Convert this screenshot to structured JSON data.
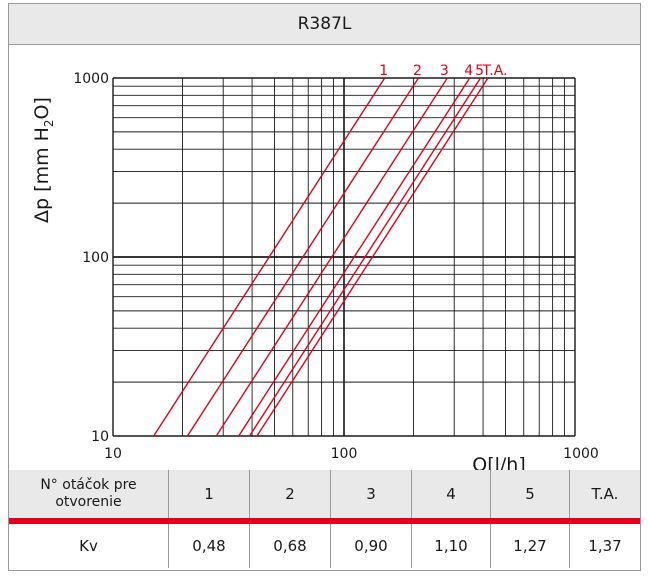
{
  "title": "R387L",
  "chart_data": {
    "type": "line",
    "title": "R387L",
    "xlabel": "Q[l/h]",
    "ylabel": "Δp[mmH2O]",
    "ylabel_parts": {
      "main": "Δp [mm H",
      "sub": "2",
      "end": "O]"
    },
    "x_scale": "log",
    "y_scale": "log",
    "xlim": [
      10,
      1000
    ],
    "ylim": [
      10,
      1000
    ],
    "x_ticks": [
      "10",
      "100",
      "1000"
    ],
    "y_ticks": [
      "10",
      "100",
      "1000"
    ],
    "grid": true,
    "series_color": "#e3001b",
    "series": [
      {
        "name": "1",
        "kv": 0.48,
        "x": [
          15,
          150
        ],
        "y": [
          10,
          1000
        ]
      },
      {
        "name": "2",
        "kv": 0.68,
        "x": [
          21,
          210
        ],
        "y": [
          10,
          1000
        ]
      },
      {
        "name": "3",
        "kv": 0.9,
        "x": [
          28,
          280
        ],
        "y": [
          10,
          1000
        ]
      },
      {
        "name": "4",
        "kv": 1.1,
        "x": [
          35,
          350
        ],
        "y": [
          10,
          1000
        ]
      },
      {
        "name": "5",
        "kv": 1.27,
        "x": [
          39,
          390
        ],
        "y": [
          10,
          1000
        ]
      },
      {
        "name": "T.A.",
        "kv": 1.37,
        "x": [
          42,
          420
        ],
        "y": [
          10,
          1000
        ]
      }
    ]
  },
  "table": {
    "row_header": "N° otáčok pre otvorenie",
    "openings": [
      "1",
      "2",
      "3",
      "4",
      "5",
      "T.A."
    ],
    "kv_label": "Kv",
    "kv_values": [
      "0,48",
      "0,68",
      "0,90",
      "1,10",
      "1,27",
      "1,37"
    ]
  }
}
